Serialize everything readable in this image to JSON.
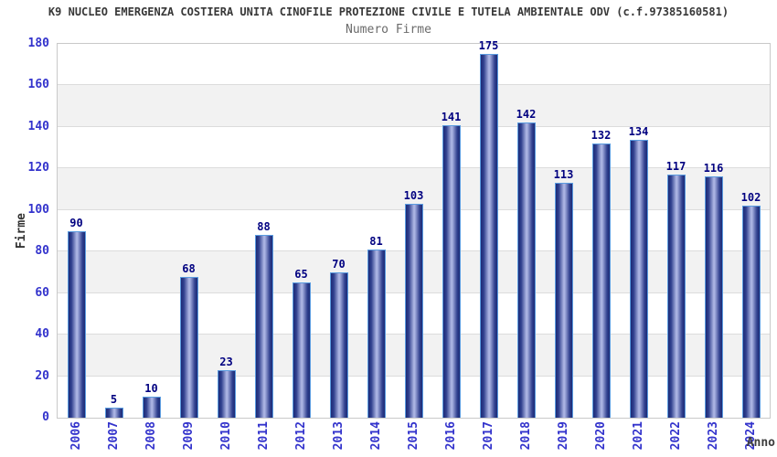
{
  "title": "K9 NUCLEO EMERGENZA COSTIERA UNITA CINOFILE PROTEZIONE CIVILE E TUTELA AMBIENTALE ODV (c.f.97385160581)",
  "subtitle": "Numero Firme",
  "chart_data": {
    "type": "bar",
    "title": "Numero Firme",
    "categories": [
      "2006",
      "2007",
      "2008",
      "2009",
      "2010",
      "2011",
      "2012",
      "2013",
      "2014",
      "2015",
      "2016",
      "2017",
      "2018",
      "2019",
      "2020",
      "2021",
      "2022",
      "2023",
      "2024"
    ],
    "values": [
      90,
      5,
      10,
      68,
      23,
      88,
      65,
      70,
      81,
      103,
      141,
      175,
      142,
      113,
      132,
      134,
      117,
      116,
      102
    ],
    "xlabel": "Anno",
    "ylabel": "Firme",
    "ylim": [
      0,
      180
    ],
    "ytick_step": 20,
    "legend": "none",
    "grid": "horizontal-bands",
    "colors": {
      "bar_dark": "#1c2b76",
      "bar_mid": "#31418f",
      "bar_light": "#aab3e2",
      "bar_border": "#5b9ce0",
      "value_label": "#000080",
      "tick_label": "#3333cc",
      "band_gray": "#f2f2f2",
      "band_white": "#ffffff",
      "grid_line": "#dcdcdc"
    }
  }
}
